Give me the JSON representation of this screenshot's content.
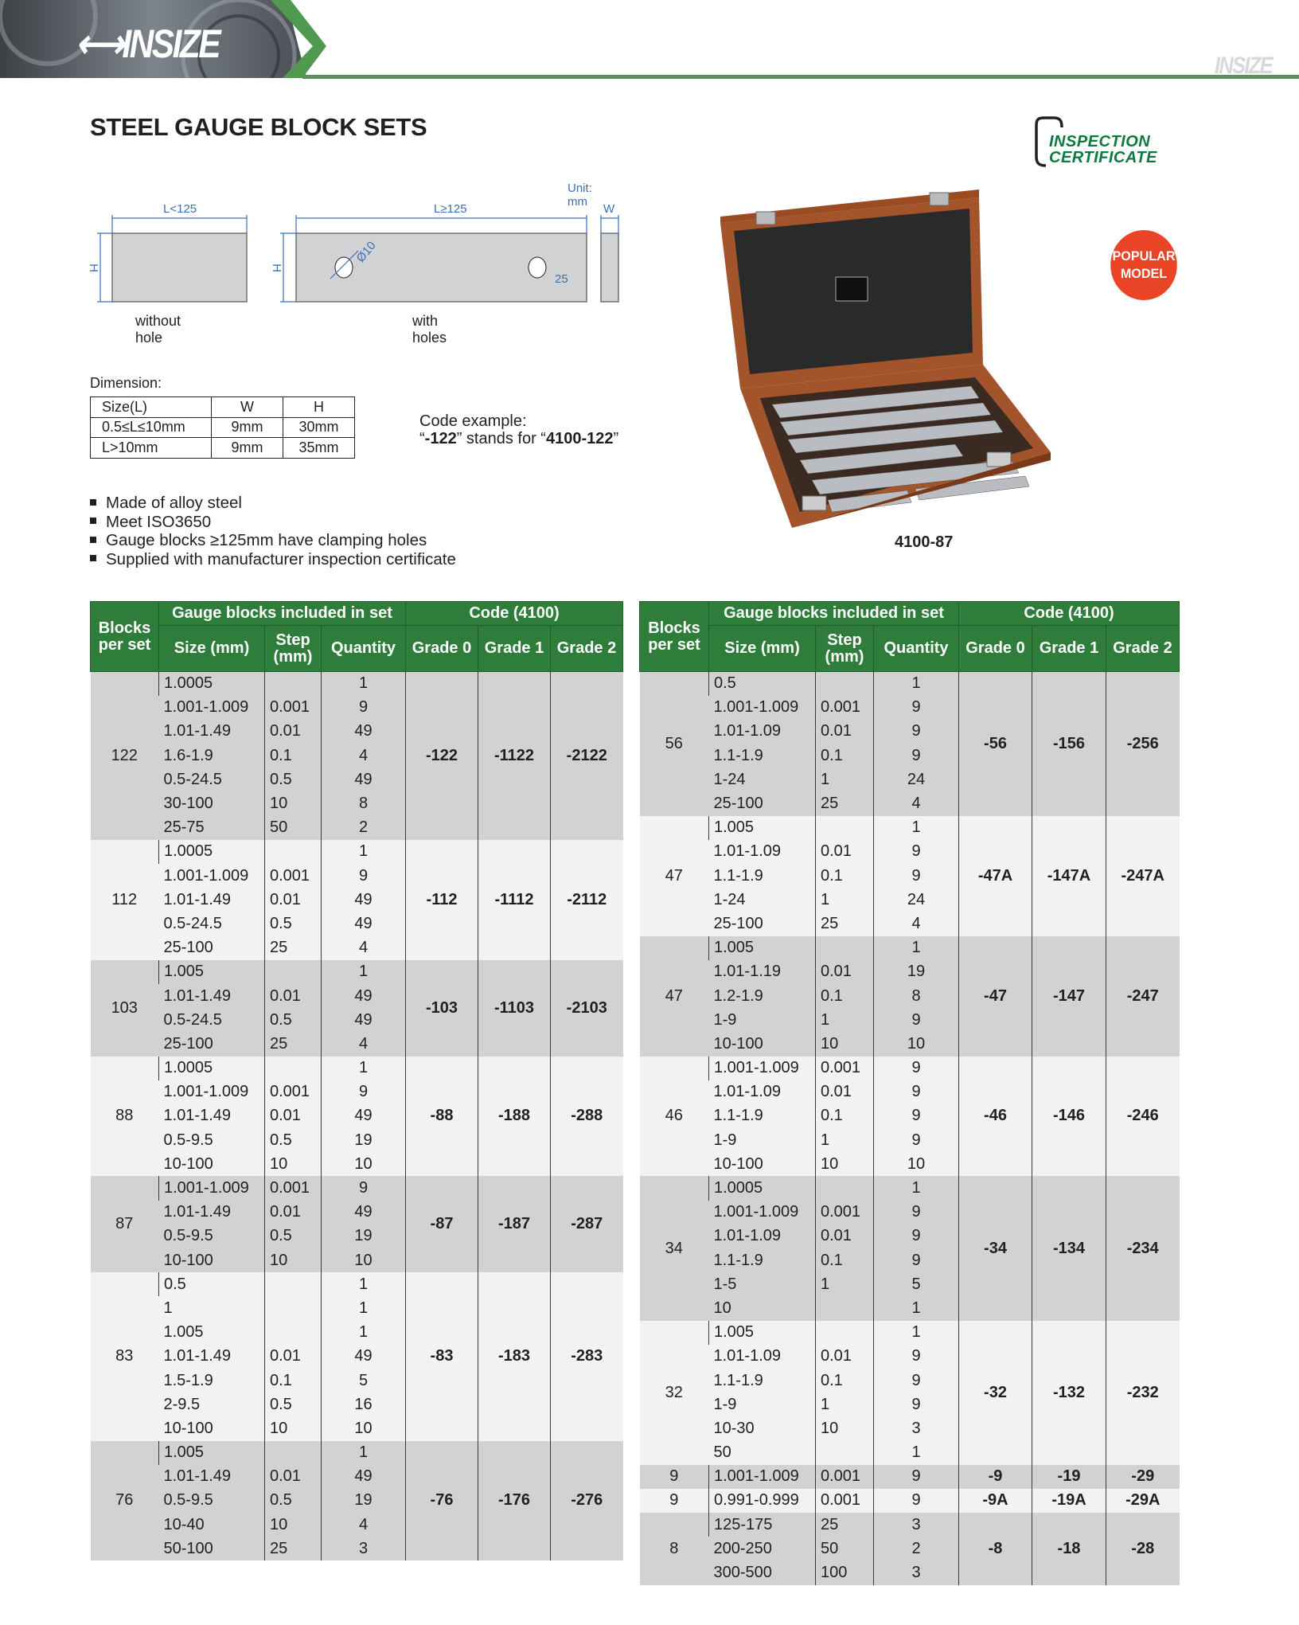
{
  "header": {
    "brand": "INSIZE",
    "watermark": "INSIZE"
  },
  "page_title": "STEEL GAUGE BLOCK SETS",
  "certificate_badge": {
    "line1": "INSPECTION",
    "line2": "CERTIFICATE"
  },
  "diagram": {
    "unit": "Unit: mm",
    "block1_length": "L<125",
    "block2_length": "L≥125",
    "width_label": "W",
    "height_label": "H",
    "hole_diameter": "Ø10",
    "hole_offset": "25",
    "caption1": "without hole",
    "caption2": "with holes"
  },
  "dimension": {
    "label": "Dimension:",
    "headers": [
      "Size(L)",
      "W",
      "H"
    ],
    "rows": [
      [
        "0.5≤L≤10mm",
        "9mm",
        "30mm"
      ],
      [
        "L>10mm",
        "9mm",
        "35mm"
      ]
    ]
  },
  "code_example": {
    "label": "Code example:",
    "q1": "“",
    "code": "-122",
    "mid": "” stands for “",
    "full": "4100-122",
    "q2": "”"
  },
  "features": [
    "Made of alloy steel",
    "Meet ISO3650",
    "Gauge blocks ≥125mm have clamping holes",
    "Supplied with manufacturer inspection certificate"
  ],
  "product": {
    "badge_line1": "POPULAR",
    "badge_line2": "MODEL",
    "model": "4100-87"
  },
  "colors": {
    "header_green": "#2e7d3b",
    "row_dark": "#d1d2d4",
    "row_light": "#f1f2f3",
    "badge_red": "#e94425",
    "cert_green": "#0b7a3e"
  },
  "table_headers": {
    "blocks": "Blocks per set",
    "included": "Gauge blocks included in set",
    "code": "Code (4100)",
    "size": "Size (mm)",
    "step": "Step (mm)",
    "quantity": "Quantity",
    "grade0": "Grade 0",
    "grade1": "Grade 1",
    "grade2": "Grade 2"
  },
  "left_table": [
    {
      "blocks": "122",
      "codes": [
        "-122",
        "-1122",
        "-2122"
      ],
      "rows": [
        [
          "1.0005",
          "",
          "1"
        ],
        [
          "1.001-1.009",
          "0.001",
          "9"
        ],
        [
          "1.01-1.49",
          "0.01",
          "49"
        ],
        [
          "1.6-1.9",
          "0.1",
          "4"
        ],
        [
          "0.5-24.5",
          "0.5",
          "49"
        ],
        [
          "30-100",
          "10",
          "8"
        ],
        [
          "25-75",
          "50",
          "2"
        ]
      ]
    },
    {
      "blocks": "112",
      "codes": [
        "-112",
        "-1112",
        "-2112"
      ],
      "rows": [
        [
          "1.0005",
          "",
          "1"
        ],
        [
          "1.001-1.009",
          "0.001",
          "9"
        ],
        [
          "1.01-1.49",
          "0.01",
          "49"
        ],
        [
          "0.5-24.5",
          "0.5",
          "49"
        ],
        [
          "25-100",
          "25",
          "4"
        ]
      ]
    },
    {
      "blocks": "103",
      "codes": [
        "-103",
        "-1103",
        "-2103"
      ],
      "rows": [
        [
          "1.005",
          "",
          "1"
        ],
        [
          "1.01-1.49",
          "0.01",
          "49"
        ],
        [
          "0.5-24.5",
          "0.5",
          "49"
        ],
        [
          "25-100",
          "25",
          "4"
        ]
      ]
    },
    {
      "blocks": "88",
      "codes": [
        "-88",
        "-188",
        "-288"
      ],
      "rows": [
        [
          "1.0005",
          "",
          "1"
        ],
        [
          "1.001-1.009",
          "0.001",
          "9"
        ],
        [
          "1.01-1.49",
          "0.01",
          "49"
        ],
        [
          "0.5-9.5",
          "0.5",
          "19"
        ],
        [
          "10-100",
          "10",
          "10"
        ]
      ]
    },
    {
      "blocks": "87",
      "codes": [
        "-87",
        "-187",
        "-287"
      ],
      "rows": [
        [
          "1.001-1.009",
          "0.001",
          "9"
        ],
        [
          "1.01-1.49",
          "0.01",
          "49"
        ],
        [
          "0.5-9.5",
          "0.5",
          "19"
        ],
        [
          "10-100",
          "10",
          "10"
        ]
      ]
    },
    {
      "blocks": "83",
      "codes": [
        "-83",
        "-183",
        "-283"
      ],
      "rows": [
        [
          "0.5",
          "",
          "1"
        ],
        [
          "1",
          "",
          "1"
        ],
        [
          "1.005",
          "",
          "1"
        ],
        [
          "1.01-1.49",
          "0.01",
          "49"
        ],
        [
          "1.5-1.9",
          "0.1",
          "5"
        ],
        [
          "2-9.5",
          "0.5",
          "16"
        ],
        [
          "10-100",
          "10",
          "10"
        ]
      ]
    },
    {
      "blocks": "76",
      "codes": [
        "-76",
        "-176",
        "-276"
      ],
      "rows": [
        [
          "1.005",
          "",
          "1"
        ],
        [
          "1.01-1.49",
          "0.01",
          "49"
        ],
        [
          "0.5-9.5",
          "0.5",
          "19"
        ],
        [
          "10-40",
          "10",
          "4"
        ],
        [
          "50-100",
          "25",
          "3"
        ]
      ]
    }
  ],
  "right_table": [
    {
      "blocks": "56",
      "codes": [
        "-56",
        "-156",
        "-256"
      ],
      "rows": [
        [
          "0.5",
          "",
          "1"
        ],
        [
          "1.001-1.009",
          "0.001",
          "9"
        ],
        [
          "1.01-1.09",
          "0.01",
          "9"
        ],
        [
          "1.1-1.9",
          "0.1",
          "9"
        ],
        [
          "1-24",
          "1",
          "24"
        ],
        [
          "25-100",
          "25",
          "4"
        ]
      ]
    },
    {
      "blocks": "47",
      "codes": [
        "-47A",
        "-147A",
        "-247A"
      ],
      "rows": [
        [
          "1.005",
          "",
          "1"
        ],
        [
          "1.01-1.09",
          "0.01",
          "9"
        ],
        [
          "1.1-1.9",
          "0.1",
          "9"
        ],
        [
          "1-24",
          "1",
          "24"
        ],
        [
          "25-100",
          "25",
          "4"
        ]
      ]
    },
    {
      "blocks": "47",
      "codes": [
        "-47",
        "-147",
        "-247"
      ],
      "rows": [
        [
          "1.005",
          "",
          "1"
        ],
        [
          "1.01-1.19",
          "0.01",
          "19"
        ],
        [
          "1.2-1.9",
          "0.1",
          "8"
        ],
        [
          "1-9",
          "1",
          "9"
        ],
        [
          "10-100",
          "10",
          "10"
        ]
      ]
    },
    {
      "blocks": "46",
      "codes": [
        "-46",
        "-146",
        "-246"
      ],
      "rows": [
        [
          "1.001-1.009",
          "0.001",
          "9"
        ],
        [
          "1.01-1.09",
          "0.01",
          "9"
        ],
        [
          "1.1-1.9",
          "0.1",
          "9"
        ],
        [
          "1-9",
          "1",
          "9"
        ],
        [
          "10-100",
          "10",
          "10"
        ]
      ]
    },
    {
      "blocks": "34",
      "codes": [
        "-34",
        "-134",
        "-234"
      ],
      "rows": [
        [
          "1.0005",
          "",
          "1"
        ],
        [
          "1.001-1.009",
          "0.001",
          "9"
        ],
        [
          "1.01-1.09",
          "0.01",
          "9"
        ],
        [
          "1.1-1.9",
          "0.1",
          "9"
        ],
        [
          "1-5",
          "1",
          "5"
        ],
        [
          "10",
          "",
          "1"
        ]
      ]
    },
    {
      "blocks": "32",
      "codes": [
        "-32",
        "-132",
        "-232"
      ],
      "rows": [
        [
          "1.005",
          "",
          "1"
        ],
        [
          "1.01-1.09",
          "0.01",
          "9"
        ],
        [
          "1.1-1.9",
          "0.1",
          "9"
        ],
        [
          "1-9",
          "1",
          "9"
        ],
        [
          "10-30",
          "10",
          "3"
        ],
        [
          "50",
          "",
          "1"
        ]
      ]
    },
    {
      "blocks": "9",
      "codes": [
        "-9",
        "-19",
        "-29"
      ],
      "rows": [
        [
          "1.001-1.009",
          "0.001",
          "9"
        ]
      ]
    },
    {
      "blocks": "9",
      "codes": [
        "-9A",
        "-19A",
        "-29A"
      ],
      "rows": [
        [
          "0.991-0.999",
          "0.001",
          "9"
        ]
      ]
    },
    {
      "blocks": "8",
      "codes": [
        "-8",
        "-18",
        "-28"
      ],
      "rows": [
        [
          "125-175",
          "25",
          "3"
        ],
        [
          "200-250",
          "50",
          "2"
        ],
        [
          "300-500",
          "100",
          "3"
        ]
      ]
    }
  ]
}
